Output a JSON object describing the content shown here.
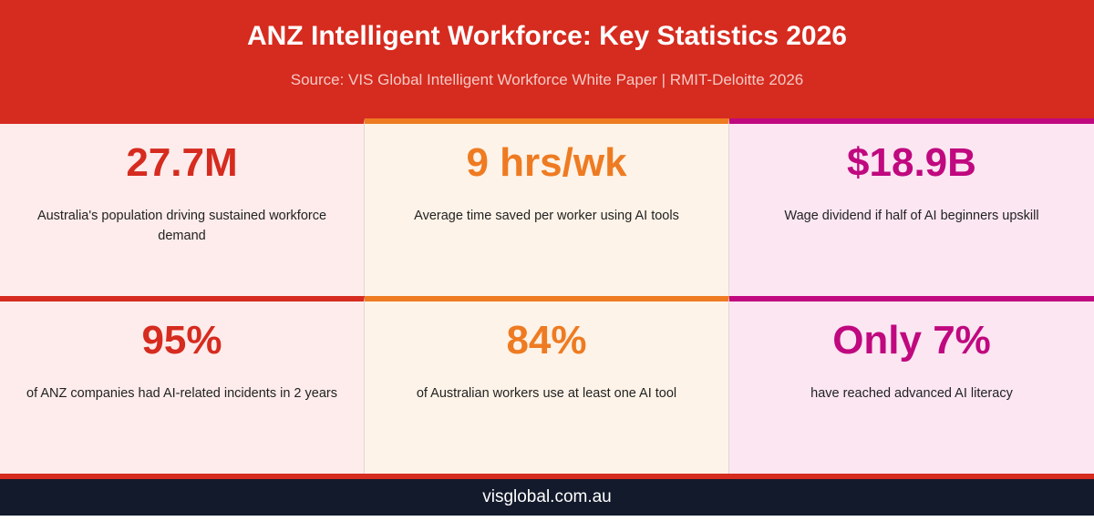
{
  "header": {
    "title": "ANZ Intelligent Workforce: Key Statistics 2026",
    "subtitle": "Source: VIS Global Intelligent Workforce White Paper | RMIT-Deloitte 2026"
  },
  "cards": [
    {
      "value": "27.7M",
      "description": "Australia's population driving sustained workforce demand"
    },
    {
      "value": "9 hrs/wk",
      "description": "Average time saved per worker using AI tools"
    },
    {
      "value": "$18.9B",
      "description": "Wage dividend if half of AI beginners upskill"
    },
    {
      "value": "95%",
      "description": "of ANZ companies had AI-related incidents in 2 years"
    },
    {
      "value": "84%",
      "description": "of Australian workers use at least one AI tool"
    },
    {
      "value": "Only 7%",
      "description": "have reached advanced AI literacy"
    }
  ],
  "footer": {
    "text": "visglobal.com.au"
  }
}
